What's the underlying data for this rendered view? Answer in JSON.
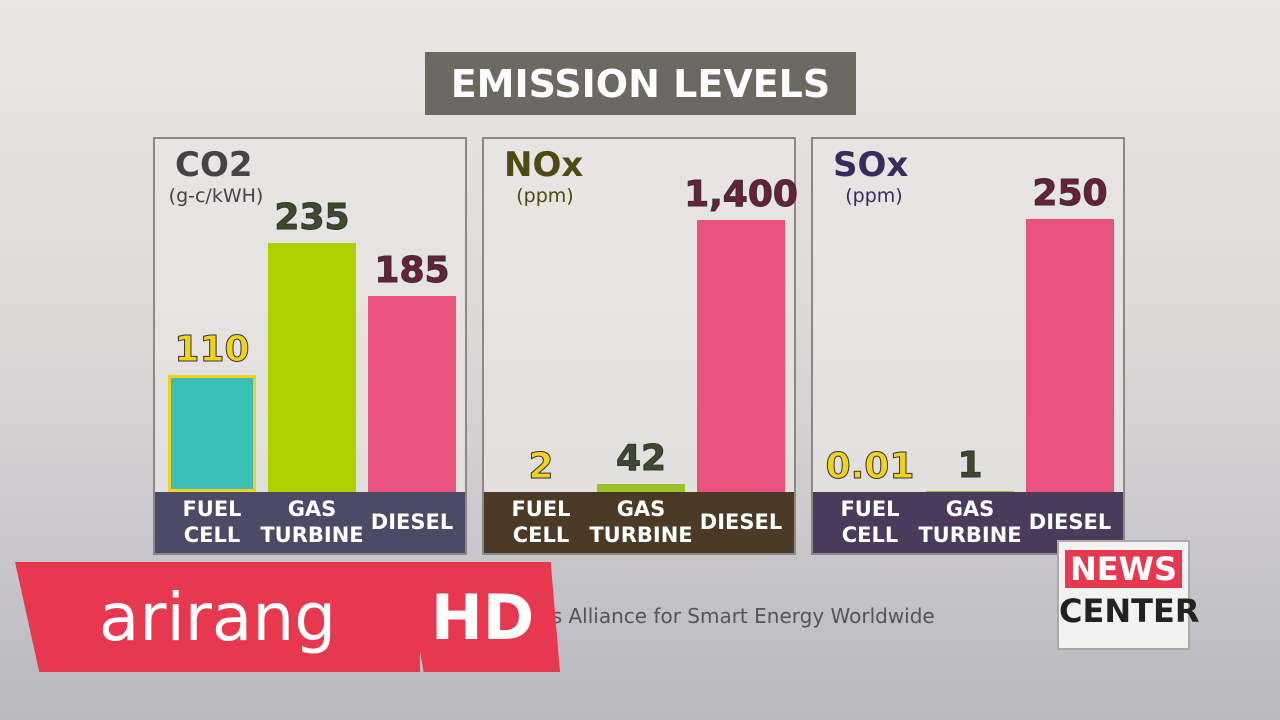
{
  "title": "EMISSION LEVELS",
  "source": "Source: Japan Business Alliance for Smart Energy Worldwide",
  "logo": "arirang",
  "logo_hd": "HD",
  "badge": [
    "NEWS",
    "CENTER"
  ],
  "chart_data": [
    {
      "type": "bar",
      "title": "CO2",
      "subtitle": "(g-c/kWH)",
      "categories": [
        "FUEL CELL",
        "GAS TURBINE",
        "DIESEL"
      ],
      "values": [
        110,
        235,
        185
      ],
      "colors": [
        "#3dbfb9",
        "#afd000",
        "#e9527c"
      ],
      "ylim": [
        0,
        330
      ]
    },
    {
      "type": "bar",
      "title": "NOx",
      "subtitle": "(ppm)",
      "categories": [
        "FUEL CELL",
        "GAS TURBINE",
        "DIESEL"
      ],
      "values": [
        2,
        42,
        1400
      ],
      "value_labels": [
        "2",
        "42",
        "1,400"
      ],
      "colors": [
        "#f2d21c",
        "#9cc22a",
        "#e9527c"
      ],
      "ylim": [
        0,
        1800
      ]
    },
    {
      "type": "bar",
      "title": "SOx",
      "subtitle": "(ppm)",
      "categories": [
        "FUEL CELL",
        "GAS TURBINE",
        "DIESEL"
      ],
      "values": [
        0.01,
        1,
        250
      ],
      "colors": [
        "#f2d21c",
        "#9cc22a",
        "#e9527c"
      ],
      "ylim": [
        0,
        320
      ]
    }
  ]
}
